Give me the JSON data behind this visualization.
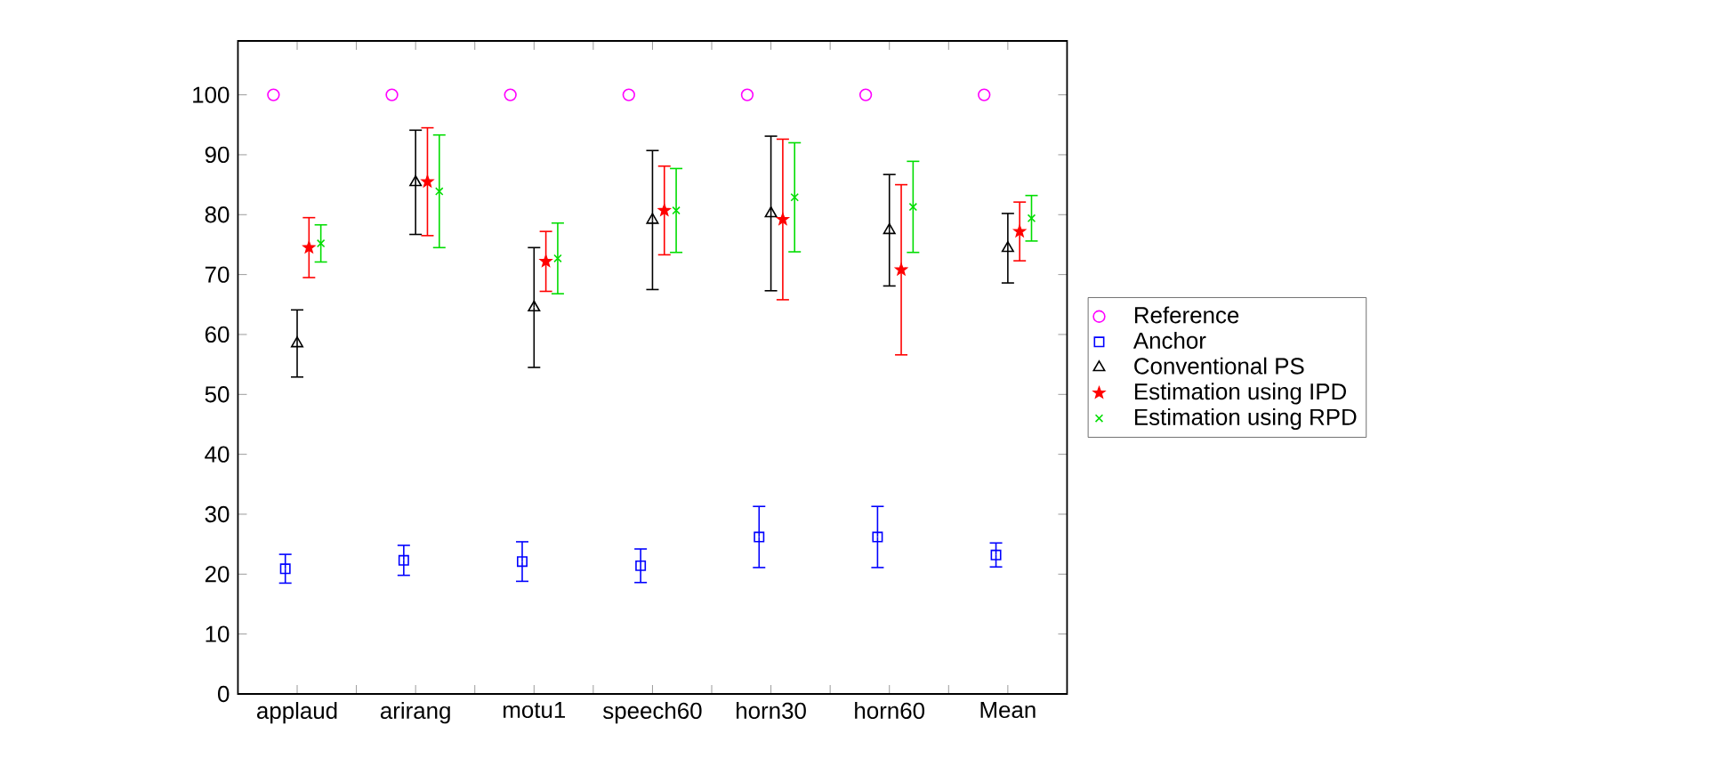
{
  "chart_data": {
    "type": "scatter",
    "categories": [
      "applaud",
      "arirang",
      "motu1",
      "speech60",
      "horn30",
      "horn60",
      "Mean"
    ],
    "ylim": [
      0,
      109
    ],
    "yticks": [
      0,
      10,
      20,
      30,
      40,
      50,
      60,
      70,
      80,
      90,
      100
    ],
    "legend": "right",
    "grid": false,
    "series": [
      {
        "name": "Reference",
        "color": "#ff00ff",
        "marker": "circle",
        "values": [
          100,
          100,
          100,
          100,
          100,
          100,
          100
        ]
      },
      {
        "name": "Anchor",
        "color": "#0000ff",
        "marker": "square",
        "values": [
          20.9,
          22.3,
          22.1,
          21.4,
          26.2,
          26.2,
          23.2
        ],
        "errors": [
          2.4,
          2.5,
          3.3,
          2.8,
          5.1,
          5.1,
          2.0
        ]
      },
      {
        "name": "Conventional PS",
        "color": "#000000",
        "marker": "triangle",
        "values": [
          58.5,
          85.4,
          64.5,
          79.1,
          80.2,
          77.4,
          74.4
        ],
        "errors": [
          5.6,
          8.7,
          10.0,
          11.6,
          12.9,
          9.3,
          5.8
        ]
      },
      {
        "name": "Estimation using IPD",
        "color": "#ff0000",
        "marker": "star",
        "values": [
          74.5,
          85.5,
          72.2,
          80.7,
          79.2,
          70.8,
          77.2
        ],
        "errors": [
          5.0,
          9.0,
          5.0,
          7.4,
          13.4,
          14.2,
          4.9
        ]
      },
      {
        "name": "Estimation using RPD",
        "color": "#00dd00",
        "marker": "cross",
        "values": [
          75.2,
          83.9,
          72.7,
          80.7,
          82.9,
          81.3,
          79.4
        ],
        "errors": [
          3.1,
          9.4,
          5.9,
          7.0,
          9.1,
          7.6,
          3.8
        ]
      }
    ]
  }
}
